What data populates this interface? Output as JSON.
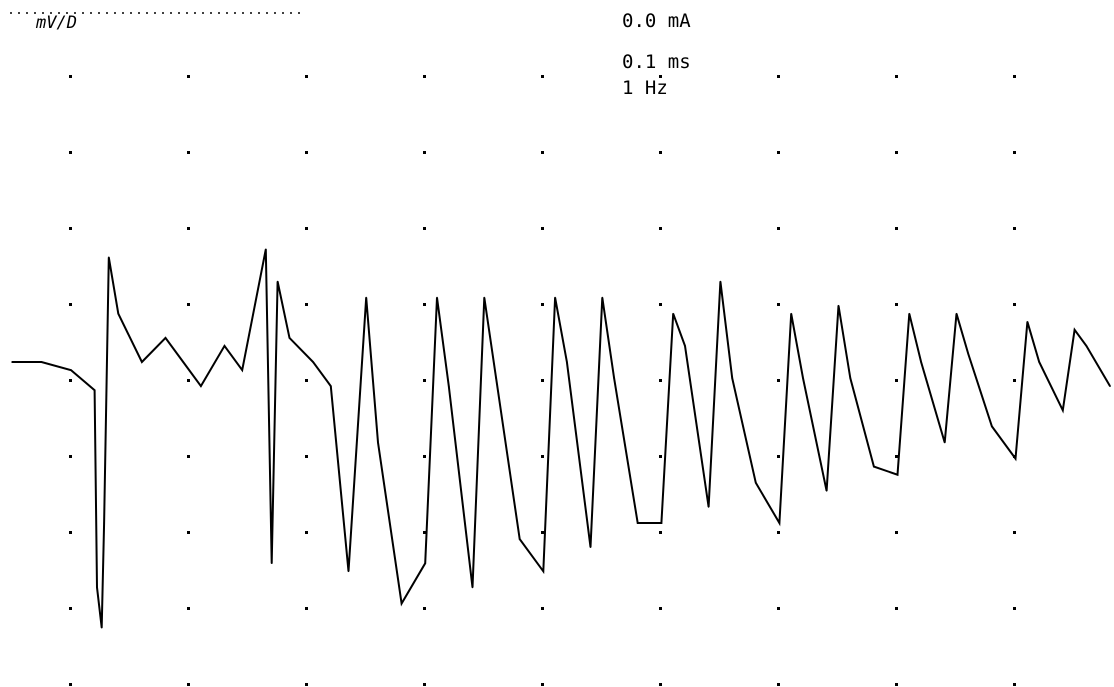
{
  "scale_label": "mV/D",
  "stim_current": "0.0 mA",
  "stim_duration": "0.1 ms",
  "stim_rate": "1 Hz",
  "trace_color": "#000000",
  "dot_color": "#000000",
  "background_color": "#ffffff",
  "chart_data": {
    "type": "line",
    "title": "",
    "xlabel": "",
    "ylabel": "",
    "grid": "dotted",
    "xlim": [
      0,
      9.3
    ],
    "ylim": [
      -4,
      4
    ],
    "series": [
      {
        "name": "",
        "x": [
          0,
          0.25,
          0.5,
          0.7,
          0.72,
          0.76,
          0.78,
          0.82,
          0.9,
          1.1,
          1.3,
          1.45,
          1.6,
          1.8,
          1.95,
          2.15,
          2.2,
          2.25,
          2.35,
          2.55,
          2.7,
          2.85,
          3.0,
          3.1,
          3.3,
          3.5,
          3.6,
          3.7,
          3.9,
          4.0,
          4.1,
          4.3,
          4.5,
          4.6,
          4.7,
          4.9,
          5.0,
          5.1,
          5.3,
          5.5,
          5.6,
          5.7,
          5.9,
          6.0,
          6.1,
          6.3,
          6.5,
          6.6,
          6.7,
          6.9,
          7.0,
          7.1,
          7.3,
          7.5,
          7.6,
          7.7,
          7.9,
          8.0,
          8.1,
          8.3,
          8.5,
          8.6,
          8.7,
          8.9,
          9.0,
          9.1,
          9.3
        ],
        "y": [
          0.0,
          0.0,
          -0.1,
          -0.35,
          -2.8,
          -3.3,
          -2.0,
          1.3,
          0.6,
          0.0,
          0.3,
          0.0,
          -0.3,
          0.2,
          -0.1,
          1.4,
          -2.5,
          1.0,
          0.3,
          0.0,
          -0.3,
          -2.6,
          0.8,
          -1.0,
          -3.0,
          -2.5,
          0.8,
          -0.3,
          -2.8,
          0.8,
          -0.2,
          -2.2,
          -2.6,
          0.8,
          0.0,
          -2.3,
          0.8,
          -0.2,
          -2.0,
          -2.0,
          0.6,
          0.2,
          -1.8,
          1.0,
          -0.2,
          -1.5,
          -2.0,
          0.6,
          -0.2,
          -1.6,
          0.7,
          -0.2,
          -1.3,
          -1.4,
          0.6,
          0.0,
          -1.0,
          0.6,
          0.1,
          -0.8,
          -1.2,
          0.5,
          0.0,
          -0.6,
          0.4,
          0.2,
          -0.3
        ]
      }
    ]
  }
}
